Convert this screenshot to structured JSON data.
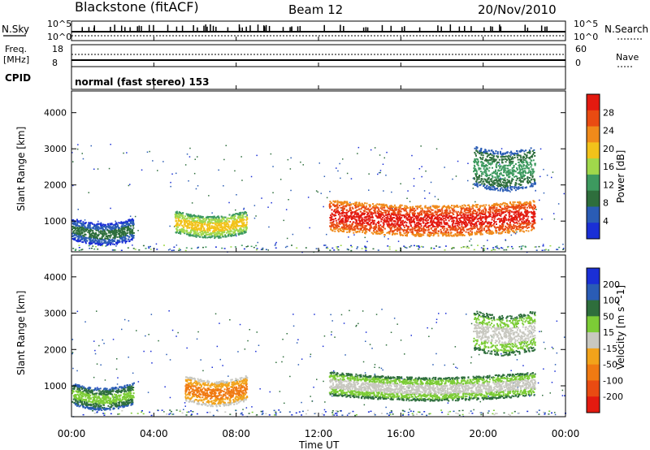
{
  "header": {
    "station": "Blackstone (fitACF)",
    "beam": "Beam 12",
    "date": "20/Nov/2010"
  },
  "panels": {
    "nsky": {
      "left_label": "N.Sky",
      "right_label": "N.Search",
      "ticks": [
        "10^5",
        "10^0"
      ]
    },
    "freq": {
      "left_label_1": "Freq.",
      "left_label_2": "[MHz]",
      "left_ticks": [
        "18",
        "8"
      ],
      "right_label": "Nave",
      "right_ticks": [
        "60",
        "0"
      ]
    },
    "cpid": {
      "label": "CPID",
      "value": "normal (fast stereo) 153"
    }
  },
  "colors": {
    "power": [
      "#1a2fd6",
      "#2a5cb5",
      "#2e6e3c",
      "#3d9a5f",
      "#a0d84b",
      "#f2c21a",
      "#f08a1a",
      "#e94b12",
      "#e31a10"
    ],
    "velocity": [
      "#1a2fd6",
      "#2a5cb5",
      "#2e6e3c",
      "#7ccc36",
      "#c8c8c0",
      "#f2a31a",
      "#f07a12",
      "#e94b12",
      "#e31a10"
    ],
    "scatter_base": "#c8c8c0"
  },
  "chart_data": [
    {
      "type": "heatmap",
      "name": "power",
      "ylabel": "Slant Range [km]",
      "xlabel": "Time UT",
      "x_ticks": [
        "00:00",
        "04:00",
        "08:00",
        "12:00",
        "16:00",
        "20:00",
        "00:00"
      ],
      "y_ticks": [
        1000,
        2000,
        3000,
        4000
      ],
      "ylim": [
        150,
        4600
      ],
      "xlim_hours": [
        0,
        24
      ],
      "colorbar": {
        "label": "Power [dB]",
        "ticks": [
          4,
          8,
          12,
          16,
          20,
          24,
          28
        ]
      },
      "features": [
        {
          "t0": 0.0,
          "t1": 3.0,
          "r0": 500,
          "r1": 1100,
          "level": 2
        },
        {
          "t0": 5.0,
          "t1": 8.5,
          "r0": 700,
          "r1": 1300,
          "level": 5
        },
        {
          "t0": 12.5,
          "t1": 22.5,
          "r0": 750,
          "r1": 1600,
          "level": 8
        },
        {
          "t0": 19.5,
          "t1": 22.5,
          "r0": 2000,
          "r1": 3100,
          "level": 3
        }
      ]
    },
    {
      "type": "heatmap",
      "name": "velocity",
      "ylabel": "Slant Range [km]",
      "xlabel": "Time UT",
      "x_ticks": [
        "00:00",
        "04:00",
        "08:00",
        "12:00",
        "16:00",
        "20:00",
        "00:00"
      ],
      "y_ticks": [
        1000,
        2000,
        3000,
        4000
      ],
      "ylim": [
        150,
        4600
      ],
      "xlim_hours": [
        0,
        24
      ],
      "colorbar": {
        "label": "Velocity [m s^-1]",
        "ticks": [
          200,
          100,
          50,
          15,
          -15,
          -50,
          -100,
          -200
        ]
      },
      "features": [
        {
          "t0": 0.0,
          "t1": 3.0,
          "r0": 500,
          "r1": 1100,
          "level": 3
        },
        {
          "t0": 5.5,
          "t1": 8.5,
          "r0": 600,
          "r1": 1300,
          "level": 6
        },
        {
          "t0": 12.5,
          "t1": 22.5,
          "r0": 750,
          "r1": 1400,
          "level": 4
        },
        {
          "t0": 19.5,
          "t1": 22.5,
          "r0": 2000,
          "r1": 3100,
          "level": 4
        }
      ]
    }
  ]
}
